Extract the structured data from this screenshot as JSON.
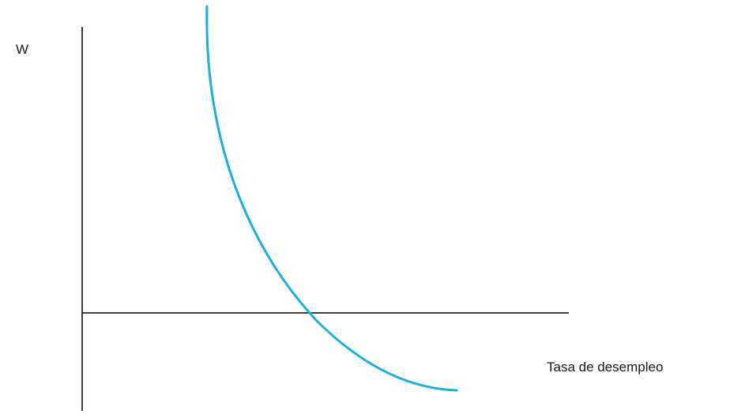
{
  "diagram": {
    "y_axis_label": "W",
    "x_axis_label": "Tasa de desempleo",
    "curve_color": "#1AAEE5",
    "axis_color": "#000000"
  }
}
